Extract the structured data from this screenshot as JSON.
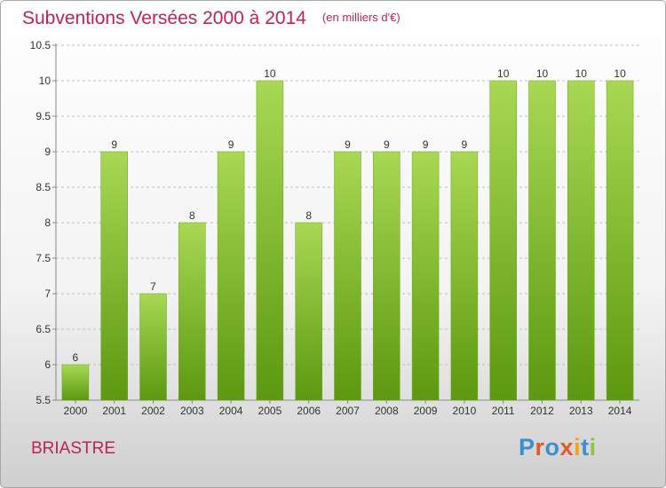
{
  "header": {
    "title": "Subventions Versées 2000 à 2014",
    "unit_note": "(en milliers d'€)"
  },
  "footer": {
    "commune": "BRIASTRE",
    "logo": {
      "text": "Proxiti",
      "letter_colors": [
        "#3a8fd0",
        "#e8562a",
        "#3a8fd0",
        "#e8562a",
        "#f3a21b",
        "#3a8fd0",
        "#8cc63f"
      ]
    }
  },
  "colors": {
    "title": "#c0215a",
    "bar_light": "#a8d854",
    "bar_dark": "#5c9810",
    "bar_edge": "#6aa61a",
    "axis": "#888888",
    "grid": "#bfbfbf",
    "label_text": "#333333"
  },
  "chart_data": {
    "type": "bar",
    "categories": [
      "2000",
      "2001",
      "2002",
      "2003",
      "2004",
      "2005",
      "2006",
      "2007",
      "2008",
      "2009",
      "2010",
      "2011",
      "2012",
      "2013",
      "2014"
    ],
    "values": [
      6,
      9,
      7,
      8,
      9,
      10,
      8,
      9,
      9,
      9,
      9,
      10,
      10,
      10,
      10
    ],
    "data_labels": [
      "6",
      "9",
      "7",
      "8",
      "9",
      "10",
      "8",
      "9",
      "9",
      "9",
      "9",
      "10",
      "10",
      "10",
      "10"
    ],
    "yticks": [
      "5.5",
      "6",
      "6.5",
      "7",
      "7.5",
      "8",
      "8.5",
      "9",
      "9.5",
      "10",
      "10.5"
    ],
    "ylim": [
      5.5,
      10.5
    ],
    "title": "Subventions Versées 2000 à 2014",
    "xlabel": "",
    "ylabel": "",
    "grid": "horizontal dashed"
  }
}
